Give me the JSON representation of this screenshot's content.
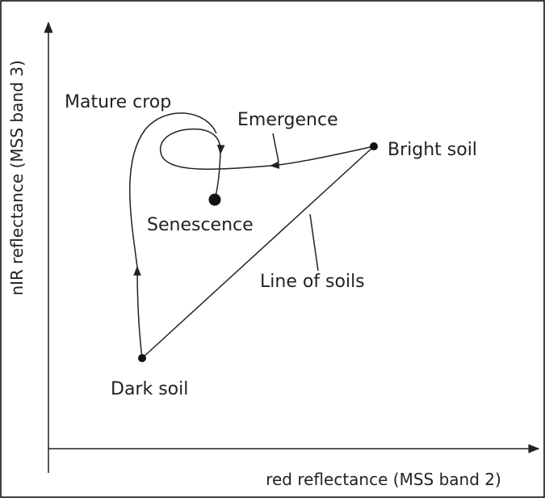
{
  "axes": {
    "x_label": "red reflectance (MSS band 2)",
    "y_label": "nIR reflectance (MSS band 3)"
  },
  "nodes": [
    {
      "label": "Dark soil"
    },
    {
      "label": "Bright soil"
    },
    {
      "label": "Senescence"
    },
    {
      "label": "Mature crop"
    },
    {
      "label": "Emergence"
    },
    {
      "label": "Line of soils"
    }
  ]
}
